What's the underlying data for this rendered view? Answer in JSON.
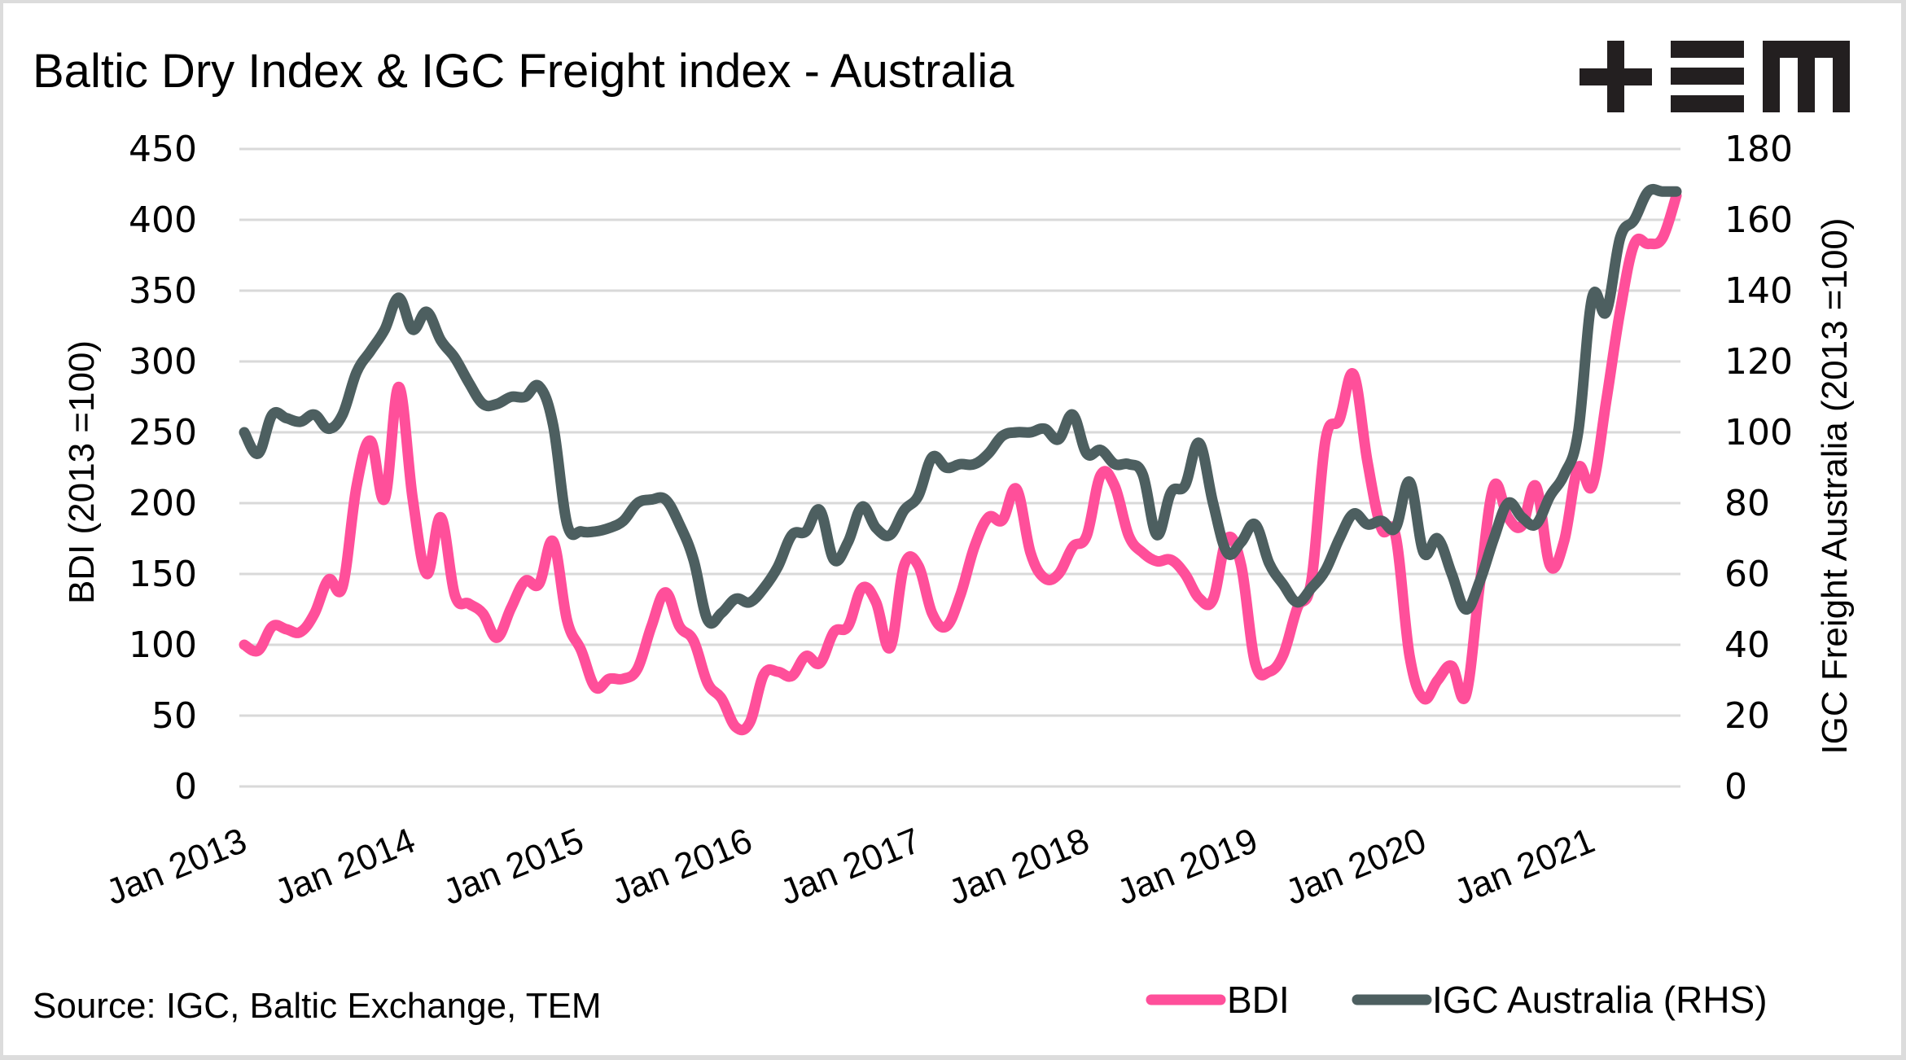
{
  "chart_data": {
    "type": "line",
    "title": "Baltic Dry Index & IGC Freight index - Australia",
    "source": "Source: IGC, Baltic Exchange, TEM",
    "logo_text": "TEM",
    "x_start": "Jan 2013",
    "x_end": "Jul 2021",
    "x_frequency": "monthly",
    "x_ticks": [
      "Jan 2013",
      "Jan 2014",
      "Jan 2015",
      "Jan 2016",
      "Jan 2017",
      "Jan 2018",
      "Jan 2019",
      "Jan 2020",
      "Jan 2021"
    ],
    "ylabel_left": "BDI (2013 =100)",
    "ylabel_right": "IGC Freight Australia (2013 =100)",
    "ylim_left": [
      0,
      450
    ],
    "ylim_right": [
      0,
      180
    ],
    "yticks_left": [
      0,
      50,
      100,
      150,
      200,
      250,
      300,
      350,
      400,
      450
    ],
    "yticks_right": [
      0,
      20,
      40,
      60,
      80,
      100,
      120,
      140,
      160,
      180
    ],
    "grid": true,
    "legend_position": "bottom-right",
    "series": [
      {
        "name": "BDI",
        "axis": "left",
        "color": "#ff4f9a",
        "values": [
          100,
          96,
          113,
          111,
          109,
          122,
          146,
          141,
          212,
          244,
          203,
          282,
          203,
          150,
          190,
          135,
          129,
          122,
          105,
          126,
          145,
          143,
          173,
          117,
          96,
          70,
          76,
          76,
          83,
          113,
          137,
          113,
          103,
          73,
          62,
          42,
          45,
          79,
          81,
          78,
          92,
          87,
          109,
          113,
          140,
          130,
          98,
          156,
          156,
          122,
          113,
          135,
          169,
          190,
          188,
          210,
          165,
          147,
          150,
          169,
          177,
          220,
          212,
          177,
          165,
          159,
          160,
          150,
          133,
          132,
          175,
          156,
          87,
          81,
          93,
          126,
          145,
          244,
          259,
          291,
          229,
          182,
          177,
          92,
          62,
          75,
          85,
          64,
          143,
          212,
          190,
          184,
          212,
          156,
          173,
          225,
          212,
          272,
          336,
          383,
          383,
          387,
          417
        ]
      },
      {
        "name": "IGC Australia (RHS)",
        "axis": "right",
        "color": "#4d5f60",
        "values": [
          100,
          94,
          105,
          104,
          103,
          105,
          101,
          105,
          117,
          123,
          129,
          138,
          129,
          134,
          126,
          121,
          114,
          108,
          108,
          110,
          110,
          113,
          102,
          74,
          72,
          72,
          73,
          75,
          80,
          81,
          81,
          74,
          64,
          47,
          49,
          53,
          52,
          56,
          62,
          71,
          72,
          78,
          64,
          69,
          79,
          73,
          71,
          78,
          82,
          93,
          90,
          91,
          91,
          94,
          99,
          100,
          100,
          101,
          98,
          105,
          94,
          95,
          91,
          91,
          88,
          71,
          83,
          85,
          97,
          80,
          66,
          69,
          74,
          63,
          57,
          52,
          56,
          61,
          70,
          77,
          74,
          75,
          73,
          86,
          66,
          70,
          60,
          50,
          58,
          70,
          80,
          76,
          74,
          82,
          88,
          100,
          138,
          134,
          155,
          160,
          168,
          168,
          168
        ]
      }
    ]
  }
}
